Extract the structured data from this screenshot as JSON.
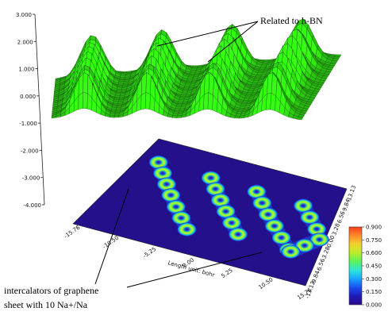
{
  "chart_data": {
    "type": "heatmap",
    "surface": {
      "color": "#2fdb11",
      "zlim": [
        -4.0,
        3.0
      ],
      "z_ticks": [
        "3.000",
        "2.000",
        "1.000",
        "0.000",
        "-1.000",
        "-2.000",
        "-3.000",
        "-4.000"
      ],
      "peak_rows": 4,
      "peaks_per_row": 7,
      "peak_height": 2.3,
      "base_level": 0.0
    },
    "map": {
      "x_ticks": [
        "-15.76",
        "-10.50",
        "-5.25",
        "0.00",
        "5.25",
        "10.50",
        "15.76"
      ],
      "x_label": "Length unit: bohr",
      "y_ticks": [
        "-13.13",
        "-9.84",
        "-6.56",
        "-3.28",
        "0.00",
        "3.28",
        "6.56",
        "9.84",
        "13.13"
      ],
      "intercalator_rows": [
        [
          [
            -12.8,
            7.4
          ],
          [
            -11.0,
            5.0
          ],
          [
            -9.3,
            2.6
          ],
          [
            -7.6,
            0.2
          ],
          [
            -5.8,
            -2.3
          ],
          [
            -4.1,
            -4.7
          ],
          [
            -2.4,
            -7.1
          ]
        ],
        [
          [
            -4.3,
            7.0
          ],
          [
            -2.6,
            4.6
          ],
          [
            -0.9,
            2.2
          ],
          [
            0.8,
            -0.2
          ],
          [
            2.5,
            -2.6
          ],
          [
            4.2,
            -5.0
          ]
        ],
        [
          [
            3.1,
            6.6
          ],
          [
            4.8,
            4.2
          ],
          [
            6.5,
            1.8
          ],
          [
            8.2,
            -0.6
          ],
          [
            9.9,
            -3.0
          ],
          [
            11.6,
            -5.4
          ]
        ],
        [
          [
            10.6,
            6.2
          ],
          [
            12.3,
            3.8
          ],
          [
            14.0,
            1.4
          ],
          [
            15.0,
            -1.0
          ],
          [
            13.4,
            -3.4
          ],
          [
            12.0,
            -5.8
          ]
        ]
      ]
    },
    "colorbar": {
      "ticks": [
        "0.000",
        "0.150",
        "0.300",
        "0.450",
        "0.600",
        "0.750",
        "0.900"
      ],
      "colors": [
        "#2a0a8a",
        "#1f1ab8",
        "#1a4ef2",
        "#17a6ff",
        "#2ee6d8",
        "#5af25a",
        "#b8ee2a",
        "#f2d22a",
        "#ff8a2a",
        "#ff3a1a"
      ]
    },
    "annotations": {
      "hbn": "Related to h-BN",
      "graphene_line1": "intercalators of graphene",
      "graphene_line2": "sheet with 10 Na+/Na"
    }
  }
}
